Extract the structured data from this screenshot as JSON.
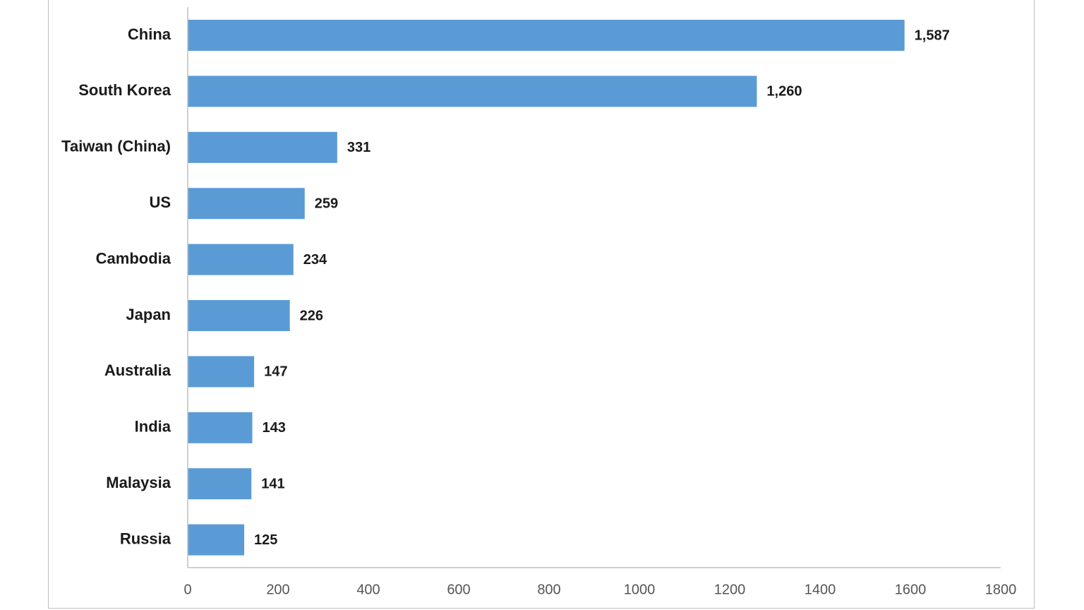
{
  "chart_data": {
    "type": "bar",
    "orientation": "horizontal",
    "categories": [
      "China",
      "South Korea",
      "Taiwan (China)",
      "US",
      "Cambodia",
      "Japan",
      "Australia",
      "India",
      "Malaysia",
      "Russia"
    ],
    "values": [
      1587,
      1260,
      331,
      259,
      234,
      226,
      147,
      143,
      141,
      125
    ],
    "value_labels": [
      "1,587",
      "1,260",
      "331",
      "259",
      "234",
      "226",
      "147",
      "143",
      "141",
      "125"
    ],
    "title": "",
    "xlabel": "",
    "ylabel": "",
    "xlim": [
      0,
      1800
    ],
    "xticks": [
      "0",
      "200",
      "400",
      "600",
      "800",
      "1000",
      "1200",
      "1400",
      "1600",
      "1800"
    ],
    "grid": false,
    "legend": "none",
    "bar_color": "#5b9bd5"
  }
}
